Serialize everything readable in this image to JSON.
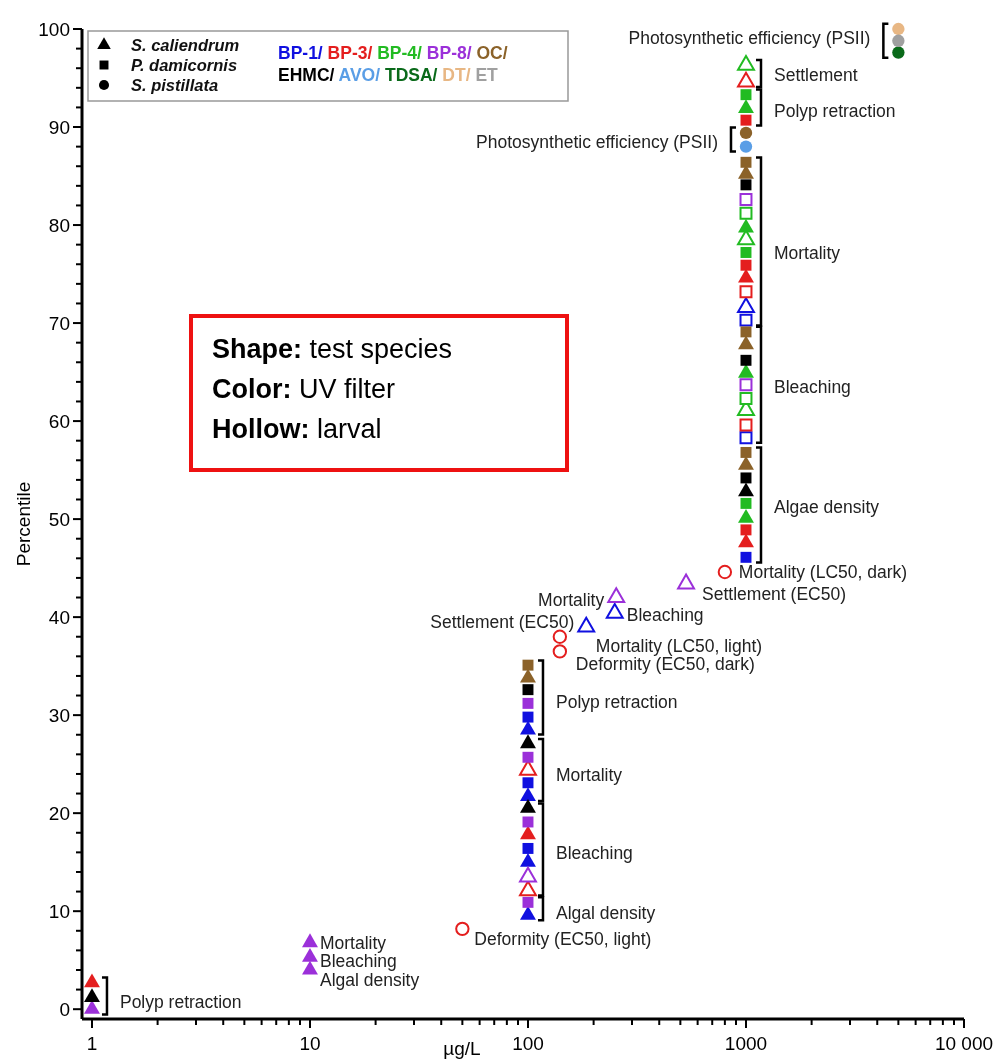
{
  "chart_data": {
    "type": "scatter",
    "xlabel": "µg/L",
    "ylabel": "Percentile",
    "log": "x",
    "xlim": [
      0.9,
      10000
    ],
    "ylim": [
      -1,
      100
    ],
    "xticks": [
      1,
      {
        "value": 2,
        "label": null
      },
      {
        "value": 3,
        "label": null
      },
      {
        "value": 4,
        "label": null
      },
      {
        "value": 5,
        "label": null
      },
      {
        "value": 6,
        "label": null
      },
      {
        "value": 7,
        "label": null
      },
      {
        "value": 8,
        "label": null
      },
      {
        "value": 9,
        "label": null
      },
      10,
      {
        "value": 20,
        "label": null
      },
      {
        "value": 30,
        "label": null
      },
      {
        "value": 40,
        "label": null
      },
      {
        "value": 50,
        "label": null
      },
      {
        "value": 60,
        "label": null
      },
      {
        "value": 70,
        "label": null
      },
      {
        "value": 80,
        "label": null
      },
      {
        "value": 90,
        "label": null
      },
      100,
      {
        "value": 200,
        "label": null
      },
      {
        "value": 300,
        "label": null
      },
      {
        "value": 400,
        "label": null
      },
      {
        "value": 500,
        "label": null
      },
      {
        "value": 600,
        "label": null
      },
      {
        "value": 700,
        "label": null
      },
      {
        "value": 800,
        "label": null
      },
      {
        "value": 900,
        "label": null
      },
      1000,
      {
        "value": 2000,
        "label": null
      },
      {
        "value": 3000,
        "label": null
      },
      {
        "value": 4000,
        "label": null
      },
      {
        "value": 5000,
        "label": null
      },
      {
        "value": 6000,
        "label": null
      },
      {
        "value": 7000,
        "label": null
      },
      {
        "value": 8000,
        "label": null
      },
      {
        "value": 9000,
        "label": null
      },
      {
        "value": 10000,
        "label": "10 000"
      }
    ],
    "yticks": [
      0,
      {
        "value": 2,
        "label": null
      },
      {
        "value": 4,
        "label": null
      },
      {
        "value": 6,
        "label": null
      },
      {
        "value": 8,
        "label": null
      },
      10,
      {
        "value": 12,
        "label": null
      },
      {
        "value": 14,
        "label": null
      },
      {
        "value": 16,
        "label": null
      },
      {
        "value": 18,
        "label": null
      },
      20,
      {
        "value": 22,
        "label": null
      },
      {
        "value": 24,
        "label": null
      },
      {
        "value": 26,
        "label": null
      },
      {
        "value": 28,
        "label": null
      },
      30,
      {
        "value": 32,
        "label": null
      },
      {
        "value": 34,
        "label": null
      },
      {
        "value": 36,
        "label": null
      },
      {
        "value": 38,
        "label": null
      },
      40,
      {
        "value": 42,
        "label": null
      },
      {
        "value": 44,
        "label": null
      },
      {
        "value": 46,
        "label": null
      },
      {
        "value": 48,
        "label": null
      },
      50,
      {
        "value": 52,
        "label": null
      },
      {
        "value": 54,
        "label": null
      },
      {
        "value": 56,
        "label": null
      },
      {
        "value": 58,
        "label": null
      },
      60,
      {
        "value": 62,
        "label": null
      },
      {
        "value": 64,
        "label": null
      },
      {
        "value": 66,
        "label": null
      },
      {
        "value": 68,
        "label": null
      },
      70,
      {
        "value": 72,
        "label": null
      },
      {
        "value": 74,
        "label": null
      },
      {
        "value": 76,
        "label": null
      },
      {
        "value": 78,
        "label": null
      },
      80,
      {
        "value": 82,
        "label": null
      },
      {
        "value": 84,
        "label": null
      },
      {
        "value": 86,
        "label": null
      },
      {
        "value": 88,
        "label": null
      },
      90,
      {
        "value": 92,
        "label": null
      },
      {
        "value": 94,
        "label": null
      },
      {
        "value": 96,
        "label": null
      },
      {
        "value": 98,
        "label": null
      },
      100
    ],
    "grid": false,
    "legend": "top left",
    "series": [
      {
        "name": "S. caliendrum",
        "color": "#000000",
        "marker": "triangle"
      },
      {
        "name": "P. damicornis",
        "color": "#000000",
        "marker": "square"
      },
      {
        "name": "S. pistillata",
        "color": "#000000",
        "marker": "circle"
      },
      {
        "name": "BP-1/",
        "color": "#1010e0",
        "marker": "triangle",
        "x": [
          100,
          100,
          100,
          100
        ],
        "values": [
          28.5,
          21.7,
          15.0,
          9.6
        ]
      },
      {
        "color": "#1010e0",
        "marker": "square",
        "x": [
          100,
          100,
          100,
          1000
        ],
        "values": [
          29.8,
          23.1,
          16.4,
          46.1
        ]
      },
      {
        "color": "#ffffff",
        "colors": [
          "#1010e0",
          "#1010e0",
          "#1010e0"
        ],
        "marker": "triangle",
        "x": [
          1000,
          185,
          250
        ],
        "values": [
          71.6,
          39.0,
          40.4
        ]
      },
      {
        "color": "#ffffff",
        "colors": [
          "#1010e0",
          "#1010e0"
        ],
        "marker": "square",
        "x": [
          1000,
          1000
        ],
        "values": [
          70.3,
          58.3
        ]
      },
      {
        "name": "BP-3/",
        "color": "#e41e1e",
        "marker": "triangle",
        "x": [
          1000,
          1000,
          100,
          1
        ],
        "values": [
          74.6,
          47.6,
          17.8,
          2.7
        ]
      },
      {
        "color": "#e41e1e",
        "marker": "square",
        "x": [
          1000,
          1000,
          1000
        ],
        "values": [
          90.7,
          75.9,
          48.9
        ]
      },
      {
        "color": "#ffffff",
        "colors": [
          "#e41e1e",
          "#e41e1e",
          "#e41e1e"
        ],
        "marker": "triangle",
        "x": [
          1000,
          100,
          100
        ],
        "values": [
          94.6,
          24.4,
          12.1
        ]
      },
      {
        "color": "#ffffff",
        "colors": [
          "#e41e1e",
          "#e41e1e"
        ],
        "marker": "square",
        "x": [
          1000,
          1000
        ],
        "values": [
          73.2,
          59.6
        ]
      },
      {
        "color": "#ffffff",
        "colors": [
          "#e41e1e",
          "#e41e1e",
          "#e41e1e",
          "#e41e1e"
        ],
        "marker": "circle",
        "x": [
          800,
          140,
          140,
          50
        ],
        "values": [
          44.6,
          38.0,
          36.5,
          8.2
        ]
      },
      {
        "name": "BP-4/",
        "color": "#22bb22",
        "marker": "triangle",
        "x": [
          1000,
          1000,
          1000,
          1000
        ],
        "values": [
          91.9,
          79.7,
          64.9,
          50.1
        ]
      },
      {
        "color": "#22bb22",
        "marker": "square",
        "x": [
          1000,
          1000,
          1000
        ],
        "values": [
          93.3,
          77.2,
          51.6
        ]
      },
      {
        "color": "#ffffff",
        "colors": [
          "#22bb22",
          "#22bb22",
          "#22bb22"
        ],
        "marker": "triangle",
        "x": [
          1000,
          1000,
          1000
        ],
        "values": [
          96.3,
          78.5,
          61.1
        ]
      },
      {
        "color": "#ffffff",
        "colors": [
          "#22bb22",
          "#22bb22"
        ],
        "marker": "square",
        "x": [
          1000,
          1000
        ],
        "values": [
          81.2,
          62.3
        ]
      },
      {
        "name": "BP-8/",
        "color": "#9b30d9",
        "marker": "triangle",
        "x": [
          10,
          10,
          10,
          1
        ],
        "values": [
          6.8,
          5.3,
          4.0,
          0
        ]
      },
      {
        "color": "#9b30d9",
        "marker": "square",
        "x": [
          100,
          100,
          100,
          100
        ],
        "values": [
          31.2,
          25.7,
          19.1,
          10.9
        ]
      },
      {
        "color": "#ffffff",
        "colors": [
          "#9b30d9",
          "#9b30d9",
          "#9b30d9"
        ],
        "marker": "triangle",
        "x": [
          100,
          254,
          531
        ],
        "values": [
          13.5,
          42.0,
          43.4
        ]
      },
      {
        "color": "#ffffff",
        "colors": [
          "#9b30d9",
          "#9b30d9"
        ],
        "marker": "square",
        "x": [
          1000,
          1000
        ],
        "values": [
          82.6,
          63.7
        ]
      },
      {
        "name": "OC/",
        "color": "#8b6229",
        "marker": "triangle",
        "x": [
          1000,
          1000,
          1000,
          100
        ],
        "values": [
          85.2,
          67.8,
          55.5,
          33.8
        ]
      },
      {
        "color": "#8b6229",
        "marker": "square",
        "x": [
          1000,
          1000,
          1000,
          100
        ],
        "values": [
          86.4,
          69.1,
          56.8,
          35.1
        ]
      },
      {
        "color": "#8b6229",
        "marker": "circle",
        "x": [
          1000
        ],
        "values": [
          89.4
        ]
      },
      {
        "name": "EHMC/",
        "color": "#000000",
        "marker": "triangle",
        "x": [
          1000,
          100,
          100,
          1
        ],
        "values": [
          52.8,
          27.1,
          20.5,
          1.2
        ]
      },
      {
        "color": "#000000",
        "marker": "square",
        "x": [
          1000,
          1000,
          1000,
          100
        ],
        "values": [
          84.1,
          66.2,
          54.2,
          32.6
        ]
      },
      {
        "name": "AVO/",
        "color": "#5a9ee6",
        "marker": "circle",
        "x": [
          1000
        ],
        "values": [
          88.0
        ]
      },
      {
        "name": "TDSA/",
        "color": "#0a6a1a",
        "marker": "circle",
        "x": [
          5000
        ],
        "values": [
          97.6
        ]
      },
      {
        "name": "DT/",
        "color": "#e8b784",
        "marker": "circle",
        "x": [
          5000
        ],
        "values": [
          100
        ]
      },
      {
        "name": "ET",
        "color": "#a0a0a0",
        "marker": "circle",
        "x": [
          5000
        ],
        "values": [
          98.8
        ]
      }
    ],
    "annotations": [
      "Shape: test species",
      "Color: UV filter",
      "Hollow: larval",
      {
        "text": "Photosynthetic efficiency (PSII)",
        "x": 5000,
        "y": 98.8
      },
      {
        "text": "Settlement",
        "x": 1000,
        "y": 94.6
      },
      {
        "text": "Polyp retraction",
        "x": 1000,
        "y": 91.9
      },
      {
        "text": "Photosynthetic efficiency (PSII)",
        "x": 1000,
        "y": 88.0
      },
      {
        "text": "Mortality",
        "x": 1000,
        "y": 77.2
      },
      {
        "text": "Bleaching",
        "x": 1000,
        "y": 63.7
      },
      {
        "text": "Algae density",
        "x": 1000,
        "y": 51.6
      },
      {
        "text": "Polyp retraction",
        "x": 100,
        "y": 31.2
      },
      {
        "text": "Mortality",
        "x": 100,
        "y": 24.4
      },
      {
        "text": "Bleaching",
        "x": 100,
        "y": 16.4
      },
      {
        "text": "Algal density",
        "x": 100,
        "y": 10.9
      },
      {
        "text": "Polyp retraction",
        "x": 1,
        "y": 1.2
      },
      {
        "text": "Mortality (LC50, dark)",
        "x": 800,
        "y": 44.6
      },
      {
        "text": "Settlement (EC50)",
        "x": 531,
        "y": 43.4
      },
      {
        "text": "Mortality",
        "x": 254,
        "y": 42.0
      },
      {
        "text": "Bleaching",
        "x": 250,
        "y": 40.4
      },
      {
        "text": "Settlement (EC50)",
        "x": 185,
        "y": 39.0
      },
      {
        "text": "Mortality (LC50, light)",
        "x": 140,
        "y": 38.0
      },
      {
        "text": "Deformity (EC50, dark)",
        "x": 140,
        "y": 36.5
      },
      {
        "text": "Deformity (EC50, light)",
        "x": 50,
        "y": 8.2
      },
      {
        "text": "Mortality",
        "x": 10,
        "y": 6.8
      },
      {
        "text": "Bleaching",
        "x": 10,
        "y": 5.3
      },
      {
        "text": "Algal density",
        "x": 10,
        "y": 4.0
      }
    ]
  }
}
